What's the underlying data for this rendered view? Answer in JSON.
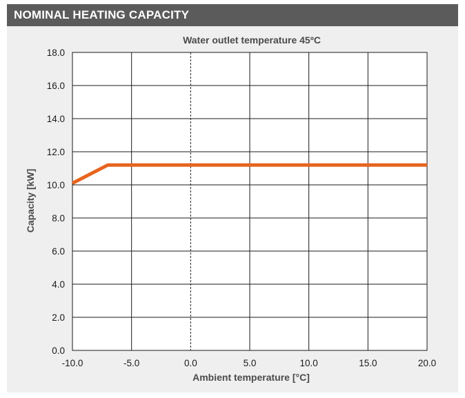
{
  "header": {
    "title": "NOMINAL HEATING CAPACITY"
  },
  "chart_data": {
    "type": "line",
    "title": "Water outlet temperature 45ºC",
    "xlabel": "Ambient temperature [°C]",
    "ylabel": "Capacity [kW]",
    "xlim": [
      -10,
      20
    ],
    "ylim": [
      0,
      18
    ],
    "x_ticks": [
      "-10.0",
      "-5.0",
      "0.0",
      "5.0",
      "10.0",
      "15.0",
      "20.0"
    ],
    "y_ticks": [
      "0.0",
      "2.0",
      "4.0",
      "6.0",
      "8.0",
      "10.0",
      "12.0",
      "14.0",
      "16.0",
      "18.0"
    ],
    "grid": true,
    "dashed_reference_x": 0,
    "series": [
      {
        "x": [
          -10,
          -7,
          20
        ],
        "y": [
          10.1,
          11.2,
          11.2
        ],
        "color": "#e8641e"
      }
    ],
    "colors": {
      "line": "#e8641e",
      "grid": "#1a1a1a",
      "panel": "#efefef",
      "header": "#5b5b5b"
    }
  }
}
